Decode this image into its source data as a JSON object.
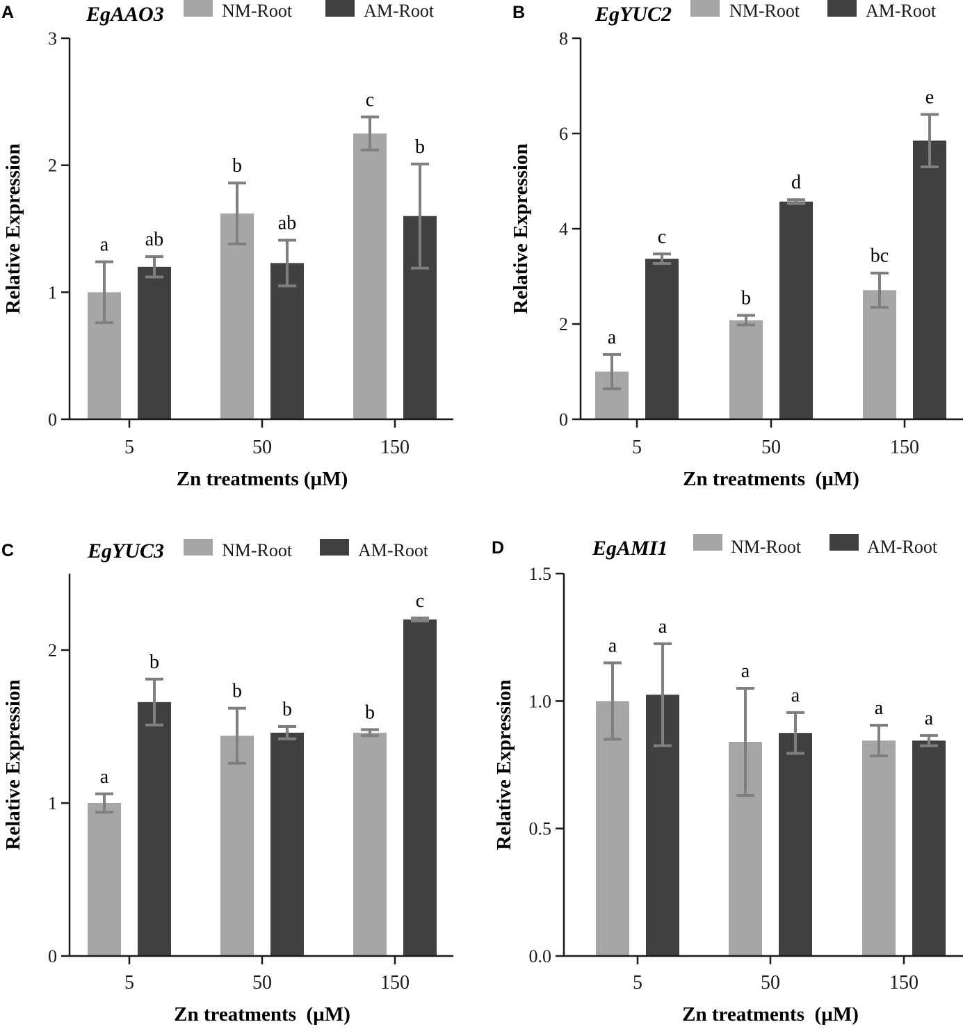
{
  "colors": {
    "nm": "#a6a6a6",
    "am": "#404040",
    "error": "#7f7f7f"
  },
  "chart_data": [
    {
      "type": "bar",
      "panel": "A",
      "title": "EgAAO3",
      "xlabel": "Zn treatments (µM)",
      "ylabel": "Relative Expression",
      "categories": [
        "5",
        "50",
        "150"
      ],
      "ylim": [
        0,
        3
      ],
      "yticks": [
        0,
        1,
        2,
        3
      ],
      "ytick_labels": [
        "0",
        "1",
        "2",
        "3"
      ],
      "series": [
        {
          "name": "NM-Root",
          "values": [
            1.0,
            1.62,
            2.25
          ],
          "errors": [
            0.24,
            0.24,
            0.13
          ],
          "letters": [
            "a",
            "b",
            "c"
          ]
        },
        {
          "name": "AM-Root",
          "values": [
            1.2,
            1.23,
            1.6
          ],
          "errors": [
            0.08,
            0.18,
            0.41
          ],
          "letters": [
            "ab",
            "ab",
            "b"
          ]
        }
      ]
    },
    {
      "type": "bar",
      "panel": "B",
      "title": "EgYUC2",
      "xlabel": "Zn treatments  (µM)",
      "ylabel": "Relative Expression",
      "categories": [
        "5",
        "50",
        "150"
      ],
      "ylim": [
        0,
        8
      ],
      "yticks": [
        0,
        2,
        4,
        6,
        8
      ],
      "ytick_labels": [
        "0",
        "2",
        "4",
        "6",
        "8"
      ],
      "series": [
        {
          "name": "NM-Root",
          "values": [
            1.0,
            2.08,
            2.71
          ],
          "errors": [
            0.36,
            0.1,
            0.36
          ],
          "letters": [
            "a",
            "b",
            "bc"
          ]
        },
        {
          "name": "AM-Root",
          "values": [
            3.37,
            4.57,
            5.85
          ],
          "errors": [
            0.1,
            0.04,
            0.55
          ],
          "letters": [
            "c",
            "d",
            "e"
          ]
        }
      ]
    },
    {
      "type": "bar",
      "panel": "C",
      "title": "EgYUC3",
      "xlabel": "Zn treatments  (µM)",
      "ylabel": "Relative Expression",
      "categories": [
        "5",
        "50",
        "150"
      ],
      "ylim": [
        0,
        2.5
      ],
      "yticks": [
        0,
        1,
        2
      ],
      "ytick_labels": [
        "0",
        "1",
        "2"
      ],
      "series": [
        {
          "name": "NM-Root",
          "values": [
            1.0,
            1.44,
            1.46
          ],
          "errors": [
            0.06,
            0.18,
            0.02
          ],
          "letters": [
            "a",
            "b",
            "b"
          ]
        },
        {
          "name": "AM-Root",
          "values": [
            1.66,
            1.46,
            2.2
          ],
          "errors": [
            0.15,
            0.04,
            0.01
          ],
          "letters": [
            "b",
            "b",
            "c"
          ]
        }
      ]
    },
    {
      "type": "bar",
      "panel": "D",
      "title": "EgAMI1",
      "xlabel": "Zn treatments  (µM)",
      "ylabel": "Relative Expression",
      "categories": [
        "5",
        "50",
        "150"
      ],
      "ylim": [
        0,
        1.5
      ],
      "yticks": [
        0,
        0.5,
        1.0,
        1.5
      ],
      "ytick_labels": [
        "0.0",
        "0.5",
        "1.0",
        "1.5"
      ],
      "series": [
        {
          "name": "NM-Root",
          "values": [
            1.0,
            0.84,
            0.845
          ],
          "errors": [
            0.15,
            0.21,
            0.06
          ],
          "letters": [
            "a",
            "a",
            "a"
          ]
        },
        {
          "name": "AM-Root",
          "values": [
            1.025,
            0.875,
            0.845
          ],
          "errors": [
            0.2,
            0.08,
            0.02
          ],
          "letters": [
            "a",
            "a",
            "a"
          ]
        }
      ]
    }
  ]
}
